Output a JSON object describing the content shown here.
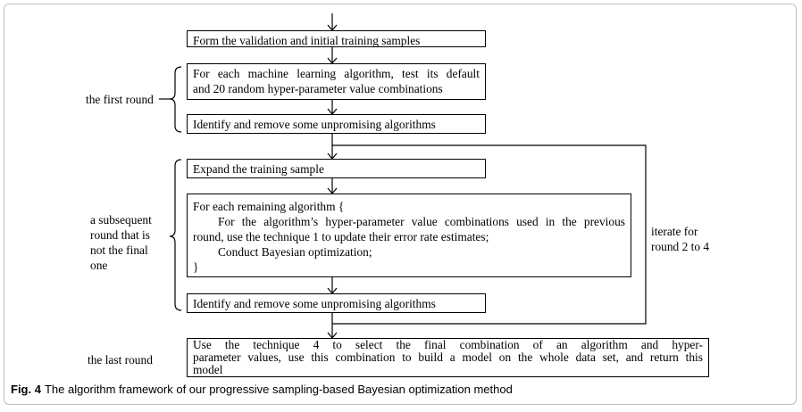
{
  "boxes": {
    "form": "Form the validation and initial training samples",
    "test_line1": "For each machine learning algorithm, test its default",
    "test_line2": "and 20 random hyper-parameter value combinations",
    "remove1": "Identify and remove some unpromising algorithms",
    "expand": "Expand the training sample",
    "loop_line1": "For each remaining algorithm {",
    "loop_line2": "For the algorithm’s hyper-parameter value combinations used in the previous",
    "loop_line3": "round, use the technique 1 to update their error rate estimates;",
    "loop_line4": "Conduct Bayesian optimization;",
    "loop_line5": "}",
    "remove2": "Identify and remove some unpromising algorithms",
    "final_line1": "Use the technique 4 to select the final combination of an algorithm and hyper-",
    "final_line2": "parameter values, use this combination to build a model on the whole data set, and return this",
    "final_line3": "model"
  },
  "labels": {
    "first_round": "the first round",
    "subsequent_1": "a subsequent",
    "subsequent_2": "round that is",
    "subsequent_3": "not the final",
    "subsequent_4": "one",
    "iterate_1": "iterate for",
    "iterate_2": "round 2 to 4",
    "last_round": "the last round"
  },
  "caption": {
    "fig": "Fig. 4",
    "text": "The algorithm framework of our progressive sampling-based Bayesian optimization method"
  }
}
